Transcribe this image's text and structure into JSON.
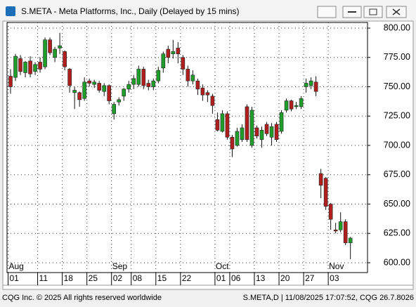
{
  "chart_data": {
    "type": "candlestick",
    "title": "S.META - Meta Platforms, Inc., Daily (Delayed by 15 mins)",
    "x": [
      "08-01",
      "08-04",
      "08-05",
      "08-06",
      "08-07",
      "08-08",
      "08-11",
      "08-12",
      "08-13",
      "08-14",
      "08-15",
      "08-18",
      "08-19",
      "08-20",
      "08-21",
      "08-22",
      "08-25",
      "08-26",
      "08-27",
      "08-28",
      "08-29",
      "09-02",
      "09-03",
      "09-04",
      "09-05",
      "09-08",
      "09-09",
      "09-10",
      "09-11",
      "09-12",
      "09-15",
      "09-16",
      "09-17",
      "09-18",
      "09-19",
      "09-22",
      "09-23",
      "09-24",
      "09-25",
      "09-26",
      "09-29",
      "09-30",
      "10-01",
      "10-02",
      "10-03",
      "10-06",
      "10-07",
      "10-08",
      "10-09",
      "10-10",
      "10-13",
      "10-14",
      "10-15",
      "10-16",
      "10-17",
      "10-20",
      "10-21",
      "10-22",
      "10-23",
      "10-24",
      "10-27",
      "10-28",
      "10-29",
      "10-30",
      "10-31",
      "11-03",
      "11-04",
      "11-05",
      "11-06",
      "11-07"
    ],
    "open": [
      759,
      758,
      774,
      762,
      772,
      763,
      771,
      767,
      790,
      775,
      783,
      780,
      765,
      745,
      745,
      740,
      755,
      752,
      753,
      746,
      751,
      727,
      737,
      742,
      748,
      752,
      752,
      765,
      753,
      750,
      755,
      766,
      782,
      778,
      783,
      775,
      765,
      755,
      755,
      749,
      745,
      742,
      722,
      712,
      727,
      707,
      700,
      705,
      733,
      700,
      715,
      705,
      718,
      707,
      718,
      712,
      730,
      738,
      733,
      733,
      750,
      751,
      754,
      676,
      672,
      650,
      628,
      628,
      635,
      617
    ],
    "high": [
      765,
      778,
      777,
      772,
      776,
      771,
      775,
      792,
      792,
      784,
      796,
      781,
      766,
      750,
      746,
      758,
      757,
      756,
      755,
      753,
      752,
      737,
      741,
      749,
      755,
      760,
      768,
      767,
      756,
      757,
      767,
      780,
      785,
      790,
      788,
      777,
      768,
      764,
      757,
      752,
      747,
      744,
      728,
      730,
      729,
      709,
      715,
      718,
      735,
      733,
      717,
      716,
      720,
      719,
      720,
      730,
      740,
      739,
      737,
      742,
      757,
      758,
      759,
      680,
      673,
      651,
      634,
      643,
      637,
      622
    ],
    "low": [
      744,
      755,
      760,
      758,
      758,
      760,
      762,
      765,
      777,
      771,
      778,
      764,
      745,
      731,
      733,
      738,
      750,
      749,
      745,
      742,
      735,
      722,
      734,
      738,
      745,
      748,
      750,
      748,
      747,
      747,
      753,
      762,
      770,
      774,
      770,
      760,
      750,
      752,
      743,
      738,
      737,
      727,
      712,
      711,
      705,
      690,
      699,
      703,
      703,
      698,
      706,
      698,
      708,
      700,
      703,
      710,
      728,
      729,
      731,
      731,
      745,
      748,
      742,
      655,
      645,
      628,
      625,
      626,
      615,
      603
    ],
    "close": [
      750,
      776,
      763,
      771,
      761,
      769,
      765,
      790,
      779,
      782,
      785,
      767,
      751,
      747,
      739,
      754,
      753,
      754,
      747,
      751,
      738,
      735,
      739,
      748,
      752,
      757,
      765,
      751,
      750,
      755,
      764,
      778,
      775,
      780,
      778,
      765,
      755,
      760,
      748,
      743,
      743,
      734,
      713,
      727,
      707,
      697,
      712,
      715,
      705,
      730,
      708,
      713,
      710,
      716,
      705,
      728,
      738,
      731,
      734,
      740,
      753,
      755,
      746,
      666,
      648,
      637,
      627,
      635,
      617,
      621
    ],
    "up_color": "#1f9f2a",
    "down_color": "#b01e1e",
    "ylim": [
      591.6,
      804.8
    ],
    "yticks": [
      {
        "value": 600,
        "label": "600.00"
      },
      {
        "value": 625,
        "label": "625.00"
      },
      {
        "value": 650,
        "label": "650.00"
      },
      {
        "value": 675,
        "label": "675.00"
      },
      {
        "value": 700,
        "label": "700.00"
      },
      {
        "value": 725,
        "label": "725.00"
      },
      {
        "value": 750,
        "label": "750.00"
      },
      {
        "value": 775,
        "label": "775.00"
      },
      {
        "value": 800,
        "label": "800.00"
      }
    ],
    "xticks": [
      {
        "value": "08-01",
        "label": "01"
      },
      {
        "value": "08-11",
        "label": "11"
      },
      {
        "value": "08-18",
        "label": "18"
      },
      {
        "value": "08-25",
        "label": "25"
      },
      {
        "value": "09-02",
        "label": "02"
      },
      {
        "value": "09-08",
        "label": "08"
      },
      {
        "value": "09-15",
        "label": "15"
      },
      {
        "value": "09-22",
        "label": "22"
      },
      {
        "value": "10-01",
        "label": "01"
      },
      {
        "value": "10-06",
        "label": "06"
      },
      {
        "value": "10-13",
        "label": "13"
      },
      {
        "value": "10-20",
        "label": "20"
      },
      {
        "value": "10-27",
        "label": "27"
      },
      {
        "value": "11-03",
        "label": "03"
      }
    ],
    "month_labels": [
      {
        "value": "08-01",
        "label": "Aug"
      },
      {
        "value": "09-02",
        "label": "Sep"
      },
      {
        "value": "10-01",
        "label": "Oct"
      },
      {
        "value": "11-03",
        "label": "Nov"
      }
    ],
    "grid": true
  },
  "footer": {
    "left": "CQG Inc. © 2025 All rights reserved worldwide",
    "right": "S.META,D | 11/08/2025 17:07:52, CQG 26.7.8026"
  }
}
